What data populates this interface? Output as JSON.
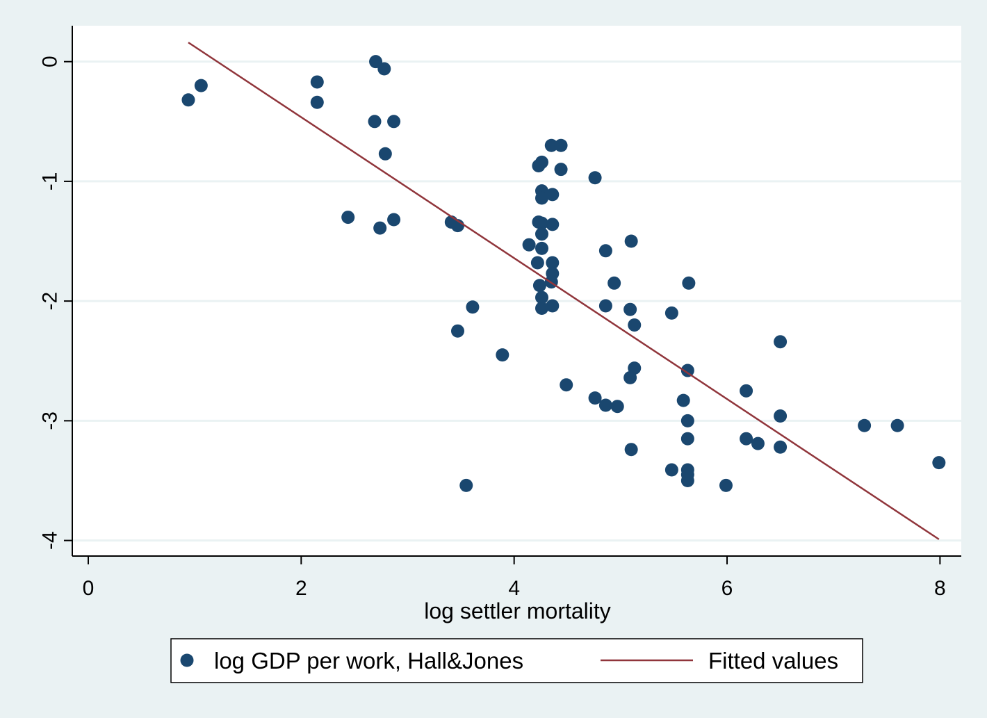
{
  "colors": {
    "background": "#eaf2f3",
    "plot_background": "#ffffff",
    "gridline": "#eaf2f3",
    "marker": "#1a476f",
    "fit_line": "#90353b",
    "axis": "#000000"
  },
  "chart_data": {
    "type": "scatter",
    "title": "",
    "xlabel": "log settler mortality",
    "ylabel": "",
    "xlim": [
      -0.15,
      8.2
    ],
    "ylim": [
      -4.13,
      0.3
    ],
    "xticks": [
      0,
      2,
      4,
      6,
      8
    ],
    "yticks": [
      0,
      -1,
      -2,
      -3,
      -4
    ],
    "xtick_labels": [
      "0",
      "2",
      "4",
      "6",
      "8"
    ],
    "ytick_labels": [
      "0",
      "-1",
      "-2",
      "-3",
      "-4"
    ],
    "grid": "horizontal",
    "legend_position": "bottom",
    "series": [
      {
        "name": "log GDP per work, Hall&Jones",
        "kind": "scatter",
        "marker": "filled-circle",
        "color": "#1a476f",
        "x": [
          0.94,
          1.06,
          2.15,
          2.15,
          2.7,
          2.78,
          2.69,
          2.87,
          2.79,
          2.44,
          2.74,
          2.87,
          3.41,
          3.47,
          3.61,
          3.47,
          3.55,
          3.89,
          4.35,
          4.44,
          4.26,
          4.23,
          4.44,
          4.26,
          4.36,
          4.26,
          4.23,
          4.26,
          4.36,
          4.26,
          4.14,
          4.26,
          4.22,
          4.36,
          4.36,
          4.35,
          4.24,
          4.26,
          4.36,
          4.26,
          4.49,
          4.76,
          4.86,
          4.86,
          4.94,
          4.76,
          4.86,
          4.97,
          5.1,
          5.09,
          5.13,
          5.13,
          5.09,
          5.1,
          5.48,
          5.48,
          5.64,
          5.63,
          5.59,
          5.63,
          5.63,
          5.63,
          5.63,
          5.63,
          5.99,
          6.18,
          6.18,
          6.29,
          6.5,
          6.5,
          6.5,
          7.29,
          7.6,
          7.99
        ],
        "y": [
          -0.32,
          -0.2,
          -0.17,
          -0.34,
          0.0,
          -0.06,
          -0.5,
          -0.5,
          -0.77,
          -1.3,
          -1.39,
          -1.32,
          -1.34,
          -1.37,
          -2.05,
          -2.25,
          -3.54,
          -2.45,
          -0.7,
          -0.7,
          -0.84,
          -0.87,
          -0.9,
          -1.08,
          -1.11,
          -1.14,
          -1.34,
          -1.35,
          -1.36,
          -1.44,
          -1.53,
          -1.56,
          -1.68,
          -1.68,
          -1.77,
          -1.84,
          -1.87,
          -1.97,
          -2.04,
          -2.06,
          -2.7,
          -0.97,
          -1.58,
          -2.04,
          -1.85,
          -2.81,
          -2.87,
          -2.88,
          -1.5,
          -2.07,
          -2.2,
          -2.56,
          -2.64,
          -3.24,
          -2.1,
          -3.41,
          -1.85,
          -2.58,
          -2.83,
          -3.0,
          -3.15,
          -3.41,
          -3.45,
          -3.5,
          -3.54,
          -2.75,
          -3.15,
          -3.19,
          -2.34,
          -2.96,
          -3.22,
          -3.04,
          -3.04,
          -3.35
        ]
      },
      {
        "name": "Fitted values",
        "kind": "line",
        "color": "#90353b",
        "x": [
          0.94,
          7.99
        ],
        "y": [
          0.16,
          -3.99
        ]
      }
    ]
  }
}
